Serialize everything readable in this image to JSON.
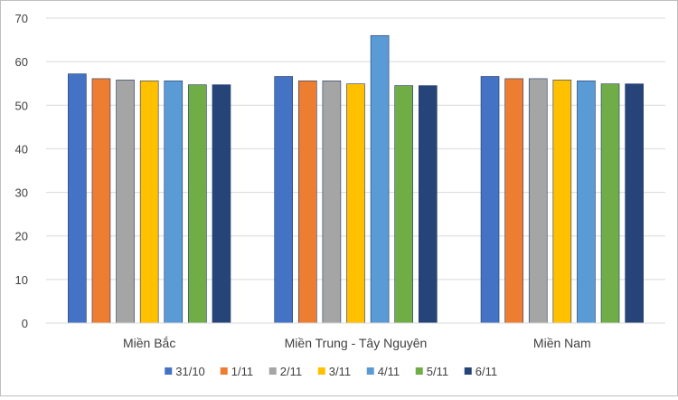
{
  "chart_data": {
    "type": "bar",
    "title": "",
    "xlabel": "",
    "ylabel": "",
    "categories": [
      "Miền Bắc",
      "Miền Trung - Tây Nguyên",
      "Miền Nam"
    ],
    "ylim": [
      0,
      70
    ],
    "yticks": [
      0,
      10,
      20,
      30,
      40,
      50,
      60,
      70
    ],
    "grid": true,
    "legend_position": "bottom",
    "series": [
      {
        "name": "31/10",
        "color": "#4472c4",
        "values": [
          57.2,
          56.6,
          56.6
        ]
      },
      {
        "name": "1/11",
        "color": "#ed7d31",
        "values": [
          56.1,
          55.6,
          56.1
        ]
      },
      {
        "name": "2/11",
        "color": "#a5a5a5",
        "values": [
          55.8,
          55.6,
          56.1
        ]
      },
      {
        "name": "3/11",
        "color": "#ffc000",
        "values": [
          55.6,
          54.9,
          55.8
        ]
      },
      {
        "name": "4/11",
        "color": "#5b9bd5",
        "values": [
          55.6,
          66.0,
          55.6
        ]
      },
      {
        "name": "5/11",
        "color": "#70ad47",
        "values": [
          54.7,
          54.5,
          54.9
        ]
      },
      {
        "name": "6/11",
        "color": "#264478",
        "values": [
          54.7,
          54.5,
          54.9
        ]
      }
    ]
  }
}
